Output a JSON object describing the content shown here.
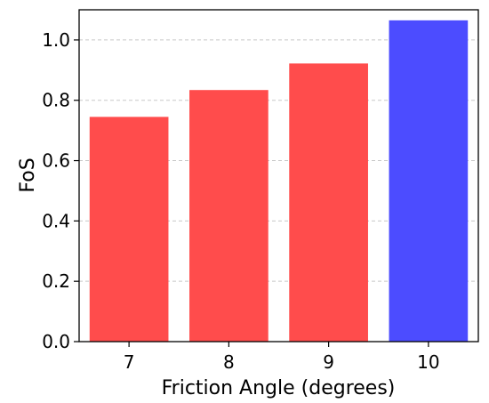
{
  "chart_data": {
    "type": "bar",
    "categories": [
      "7",
      "8",
      "9",
      "10"
    ],
    "values": [
      0.745,
      0.834,
      0.922,
      1.065
    ],
    "bar_colors": [
      "#ff4c4c",
      "#ff4c4c",
      "#ff4c4c",
      "#4c4cff"
    ],
    "xlabel": "Friction Angle (degrees)",
    "ylabel": "FoS",
    "ylim": [
      0,
      1.1
    ],
    "yticks": [
      "0.0",
      "0.2",
      "0.4",
      "0.6",
      "0.8",
      "1.0"
    ],
    "grid": "horizontal dashed"
  }
}
